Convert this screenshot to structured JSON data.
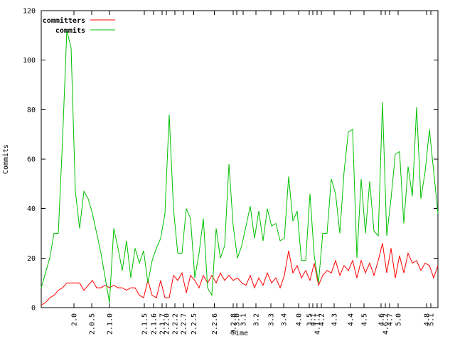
{
  "chart_data": {
    "type": "line",
    "title": "",
    "xlabel": "Time",
    "ylabel": "Commits",
    "ylim": [
      0,
      120
    ],
    "yticks": [
      0,
      20,
      40,
      60,
      80,
      100,
      120
    ],
    "grid": false,
    "legend_position": "top-left-inside",
    "background_color": "#ffffff",
    "axis_color": "#000000",
    "xticks": [
      {
        "label": "2.0",
        "pos": 0.082
      },
      {
        "label": "2.0.5",
        "pos": 0.127
      },
      {
        "label": "2.1.0",
        "pos": 0.172
      },
      {
        "label": "2.1.5",
        "pos": 0.26
      },
      {
        "label": "2.1.6",
        "pos": 0.283
      },
      {
        "label": "2.1.7",
        "pos": 0.305
      },
      {
        "label": "2.2.0",
        "pos": 0.315
      },
      {
        "label": "2.2.2",
        "pos": 0.337
      },
      {
        "label": "2.2.7",
        "pos": 0.358
      },
      {
        "label": "2.2.5",
        "pos": 0.384
      },
      {
        "label": "2.2.6",
        "pos": 0.436
      },
      {
        "label": "2.2.8",
        "pos": 0.484
      },
      {
        "label": "3.0",
        "pos": 0.493
      },
      {
        "label": "3.1",
        "pos": 0.509
      },
      {
        "label": "3.2",
        "pos": 0.541
      },
      {
        "label": "3.3",
        "pos": 0.579
      },
      {
        "label": "3.4",
        "pos": 0.611
      },
      {
        "label": "4.0",
        "pos": 0.649
      },
      {
        "label": "3.5",
        "pos": 0.676
      },
      {
        "label": "4.1",
        "pos": 0.685
      },
      {
        "label": "4.1.1",
        "pos": 0.695
      },
      {
        "label": "4.2",
        "pos": 0.706
      },
      {
        "label": "4.3",
        "pos": 0.738
      },
      {
        "label": "4.4",
        "pos": 0.78
      },
      {
        "label": "4.5",
        "pos": 0.814
      },
      {
        "label": "4.6",
        "pos": 0.857
      },
      {
        "label": "4.6.2",
        "pos": 0.867
      },
      {
        "label": "4.7",
        "pos": 0.878
      },
      {
        "label": "5.0",
        "pos": 0.9
      },
      {
        "label": "4.8",
        "pos": 0.971
      },
      {
        "label": "5.1",
        "pos": 0.982
      }
    ],
    "series": [
      {
        "name": "committers",
        "color": "#ff0000",
        "values": [
          1,
          2,
          4,
          5,
          7,
          8,
          10,
          10,
          10,
          10,
          7,
          9,
          11,
          8,
          8,
          9,
          8,
          9,
          8,
          8,
          7,
          8,
          8,
          5,
          4,
          11,
          5,
          4,
          11,
          4,
          4,
          13,
          11,
          14,
          6,
          13,
          11,
          8,
          13,
          10,
          13,
          10,
          14,
          11,
          13,
          11,
          12,
          10,
          9,
          13,
          8,
          12,
          9,
          14,
          10,
          12,
          8,
          13,
          23,
          14,
          17,
          12,
          15,
          11,
          18,
          9,
          13,
          15,
          14,
          19,
          13,
          17,
          15,
          19,
          12,
          19,
          14,
          18,
          13,
          19,
          26,
          14,
          24,
          12,
          21,
          14,
          22,
          18,
          19,
          15,
          18,
          17,
          12,
          17
        ]
      },
      {
        "name": "commits",
        "color": "#00c000",
        "values": [
          8,
          14,
          20,
          30,
          30,
          68,
          112,
          105,
          47,
          32,
          47,
          44,
          38,
          30,
          22,
          12,
          2,
          32,
          24,
          15,
          27,
          12,
          24,
          18,
          23,
          10,
          19,
          24,
          28,
          38,
          78,
          40,
          22,
          22,
          40,
          36,
          12,
          22,
          36,
          8,
          5,
          32,
          20,
          25,
          58,
          33,
          20,
          25,
          33,
          41,
          28,
          39,
          27,
          40,
          33,
          34,
          27,
          28,
          53,
          35,
          39,
          19,
          19,
          46,
          21,
          10,
          30,
          30,
          52,
          46,
          30,
          55,
          71,
          72,
          20,
          52,
          30,
          51,
          31,
          29,
          83,
          29,
          44,
          62,
          63,
          34,
          57,
          45,
          81,
          44,
          55,
          72,
          55,
          38
        ]
      }
    ]
  }
}
